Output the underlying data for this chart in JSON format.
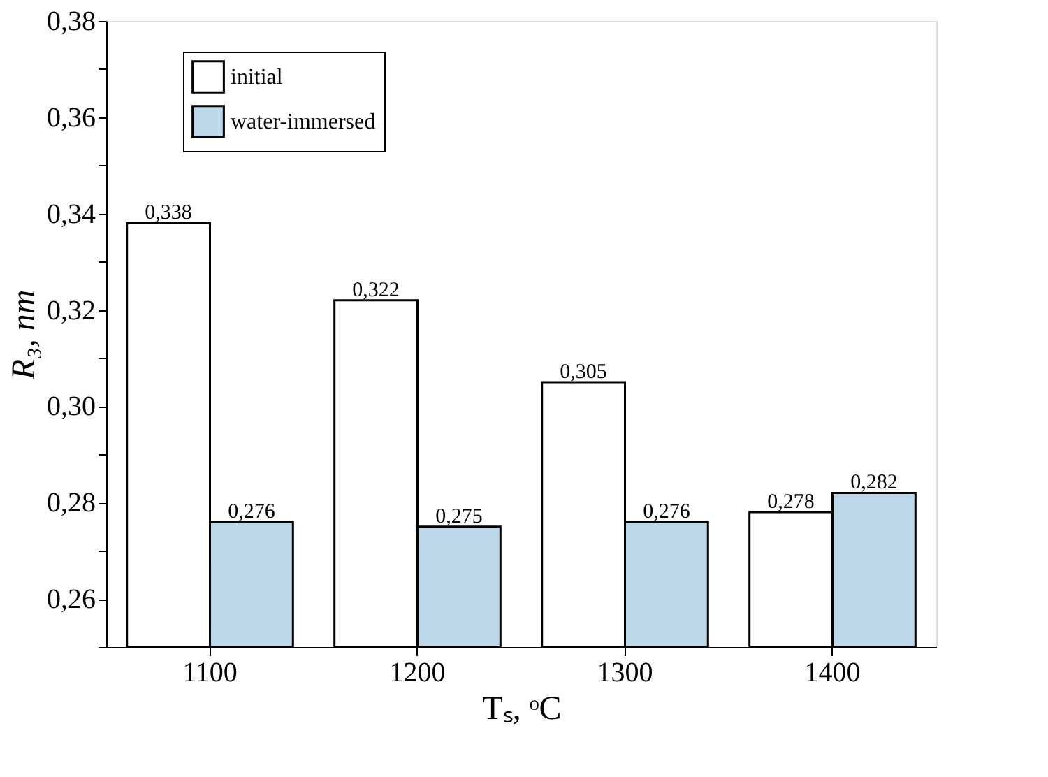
{
  "chart_data": {
    "type": "bar",
    "xlabel": "Tₛ, ᵒC",
    "ylabel": "R₃, nm",
    "categories": [
      "1100",
      "1200",
      "1300",
      "1400"
    ],
    "series": [
      {
        "name": "initial",
        "color": "#ffffff",
        "values": [
          0.338,
          0.322,
          0.305,
          0.278
        ],
        "value_labels": [
          "0,338",
          "0,322",
          "0,305",
          "0,278"
        ]
      },
      {
        "name": "water-immersed",
        "color": "#bcd8e8",
        "values": [
          0.276,
          0.275,
          0.276,
          0.282
        ],
        "value_labels": [
          "0,276",
          "0,275",
          "0,276",
          "0,282"
        ]
      }
    ],
    "ylim": [
      0.25,
      0.38
    ],
    "yticks": [
      {
        "value": 0.25,
        "label": null
      },
      {
        "value": 0.26,
        "label": "0,26"
      },
      {
        "value": 0.27,
        "label": null
      },
      {
        "value": 0.28,
        "label": "0,28"
      },
      {
        "value": 0.29,
        "label": null
      },
      {
        "value": 0.3,
        "label": "0,30"
      },
      {
        "value": 0.31,
        "label": null
      },
      {
        "value": 0.32,
        "label": "0,32"
      },
      {
        "value": 0.33,
        "label": null
      },
      {
        "value": 0.34,
        "label": "0,34"
      },
      {
        "value": 0.35,
        "label": null
      },
      {
        "value": 0.36,
        "label": "0,36"
      },
      {
        "value": 0.37,
        "label": null
      },
      {
        "value": 0.38,
        "label": "0,38"
      }
    ],
    "grid": false,
    "legend": "top left"
  }
}
